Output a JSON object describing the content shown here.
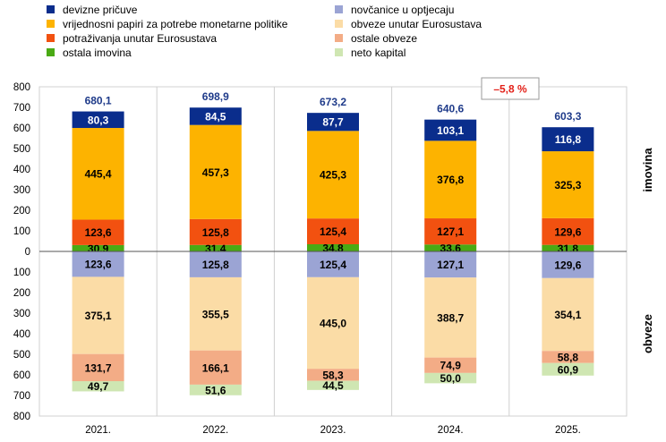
{
  "chart_data": {
    "type": "bar",
    "stacked": true,
    "categories": [
      "2021.",
      "2022.",
      "2023.",
      "2024.",
      "2025."
    ],
    "legend": [
      {
        "key": "devizne",
        "label": "devizne pričuve",
        "color": "#0a2d8c"
      },
      {
        "key": "novcanice",
        "label": "novčanice u optjecaju",
        "color": "#9ba4d4"
      },
      {
        "key": "vrijednosni",
        "label": "vrijednosni papiri za potrebe monetarne politike",
        "color": "#fdb300"
      },
      {
        "key": "obveze_euro",
        "label": "obveze unutar Eurosustava",
        "color": "#fbdca6"
      },
      {
        "key": "potrazivanja",
        "label": "potraživanja unutar Eurosustava",
        "color": "#f25110"
      },
      {
        "key": "ostale_obveze",
        "label": "ostale obveze",
        "color": "#f3ac86"
      },
      {
        "key": "ostala_imovina",
        "label": "ostala imovina",
        "color": "#4aaa14"
      },
      {
        "key": "neto_kapital",
        "label": "neto kapital",
        "color": "#cfe6b2"
      }
    ],
    "assets": {
      "side_label": "imovina",
      "order": [
        "ostala_imovina",
        "potrazivanja",
        "vrijednosni",
        "devizne"
      ],
      "series": {
        "ostala_imovina": {
          "values": [
            30.9,
            31.4,
            34.8,
            33.6,
            31.8
          ],
          "labels": [
            "30,9",
            "31,4",
            "34,8",
            "33,6",
            "31,8"
          ]
        },
        "potrazivanja": {
          "values": [
            123.6,
            125.8,
            125.4,
            127.1,
            129.6
          ],
          "labels": [
            "123,6",
            "125,8",
            "125,4",
            "127,1",
            "129,6"
          ]
        },
        "vrijednosni": {
          "values": [
            445.4,
            457.3,
            425.3,
            376.8,
            325.3
          ],
          "labels": [
            "445,4",
            "457,3",
            "425,3",
            "376,8",
            "325,3"
          ]
        },
        "devizne": {
          "values": [
            80.3,
            84.5,
            87.7,
            103.1,
            116.8
          ],
          "labels": [
            "80,3",
            "84,5",
            "87,7",
            "103,1",
            "116,8"
          ]
        }
      },
      "totals": [
        680.1,
        698.9,
        673.2,
        640.6,
        603.3
      ],
      "total_labels": [
        "680,1",
        "698,9",
        "673,2",
        "640,6",
        "603,3"
      ]
    },
    "liabilities": {
      "side_label": "obveze",
      "order": [
        "novcanice",
        "obveze_euro",
        "ostale_obveze",
        "neto_kapital"
      ],
      "series": {
        "novcanice": {
          "values": [
            123.6,
            125.8,
            125.4,
            127.1,
            129.6
          ],
          "labels": [
            "123,6",
            "125,8",
            "125,4",
            "127,1",
            "129,6"
          ]
        },
        "obveze_euro": {
          "values": [
            375.1,
            355.5,
            445.0,
            388.7,
            354.1
          ],
          "labels": [
            "375,1",
            "355,5",
            "445,0",
            "388,7",
            "354,1"
          ]
        },
        "ostale_obveze": {
          "values": [
            131.7,
            166.1,
            58.3,
            74.9,
            58.8
          ],
          "labels": [
            "131,7",
            "166,1",
            "58,3",
            "74,9",
            "58,8"
          ]
        },
        "neto_kapital": {
          "values": [
            49.7,
            51.6,
            44.5,
            50.0,
            60.9
          ],
          "labels": [
            "49,7",
            "51,6",
            "44,5",
            "50,0",
            "60,9"
          ]
        }
      }
    },
    "annotation": {
      "text": "–5,8 %",
      "color": "#e32119"
    },
    "yticks": [
      800,
      700,
      600,
      500,
      400,
      300,
      200,
      100,
      0,
      100,
      200,
      300,
      400,
      500,
      600,
      700,
      800
    ],
    "ylim": [
      -800,
      800
    ],
    "grid": "vertical-category-separators"
  }
}
